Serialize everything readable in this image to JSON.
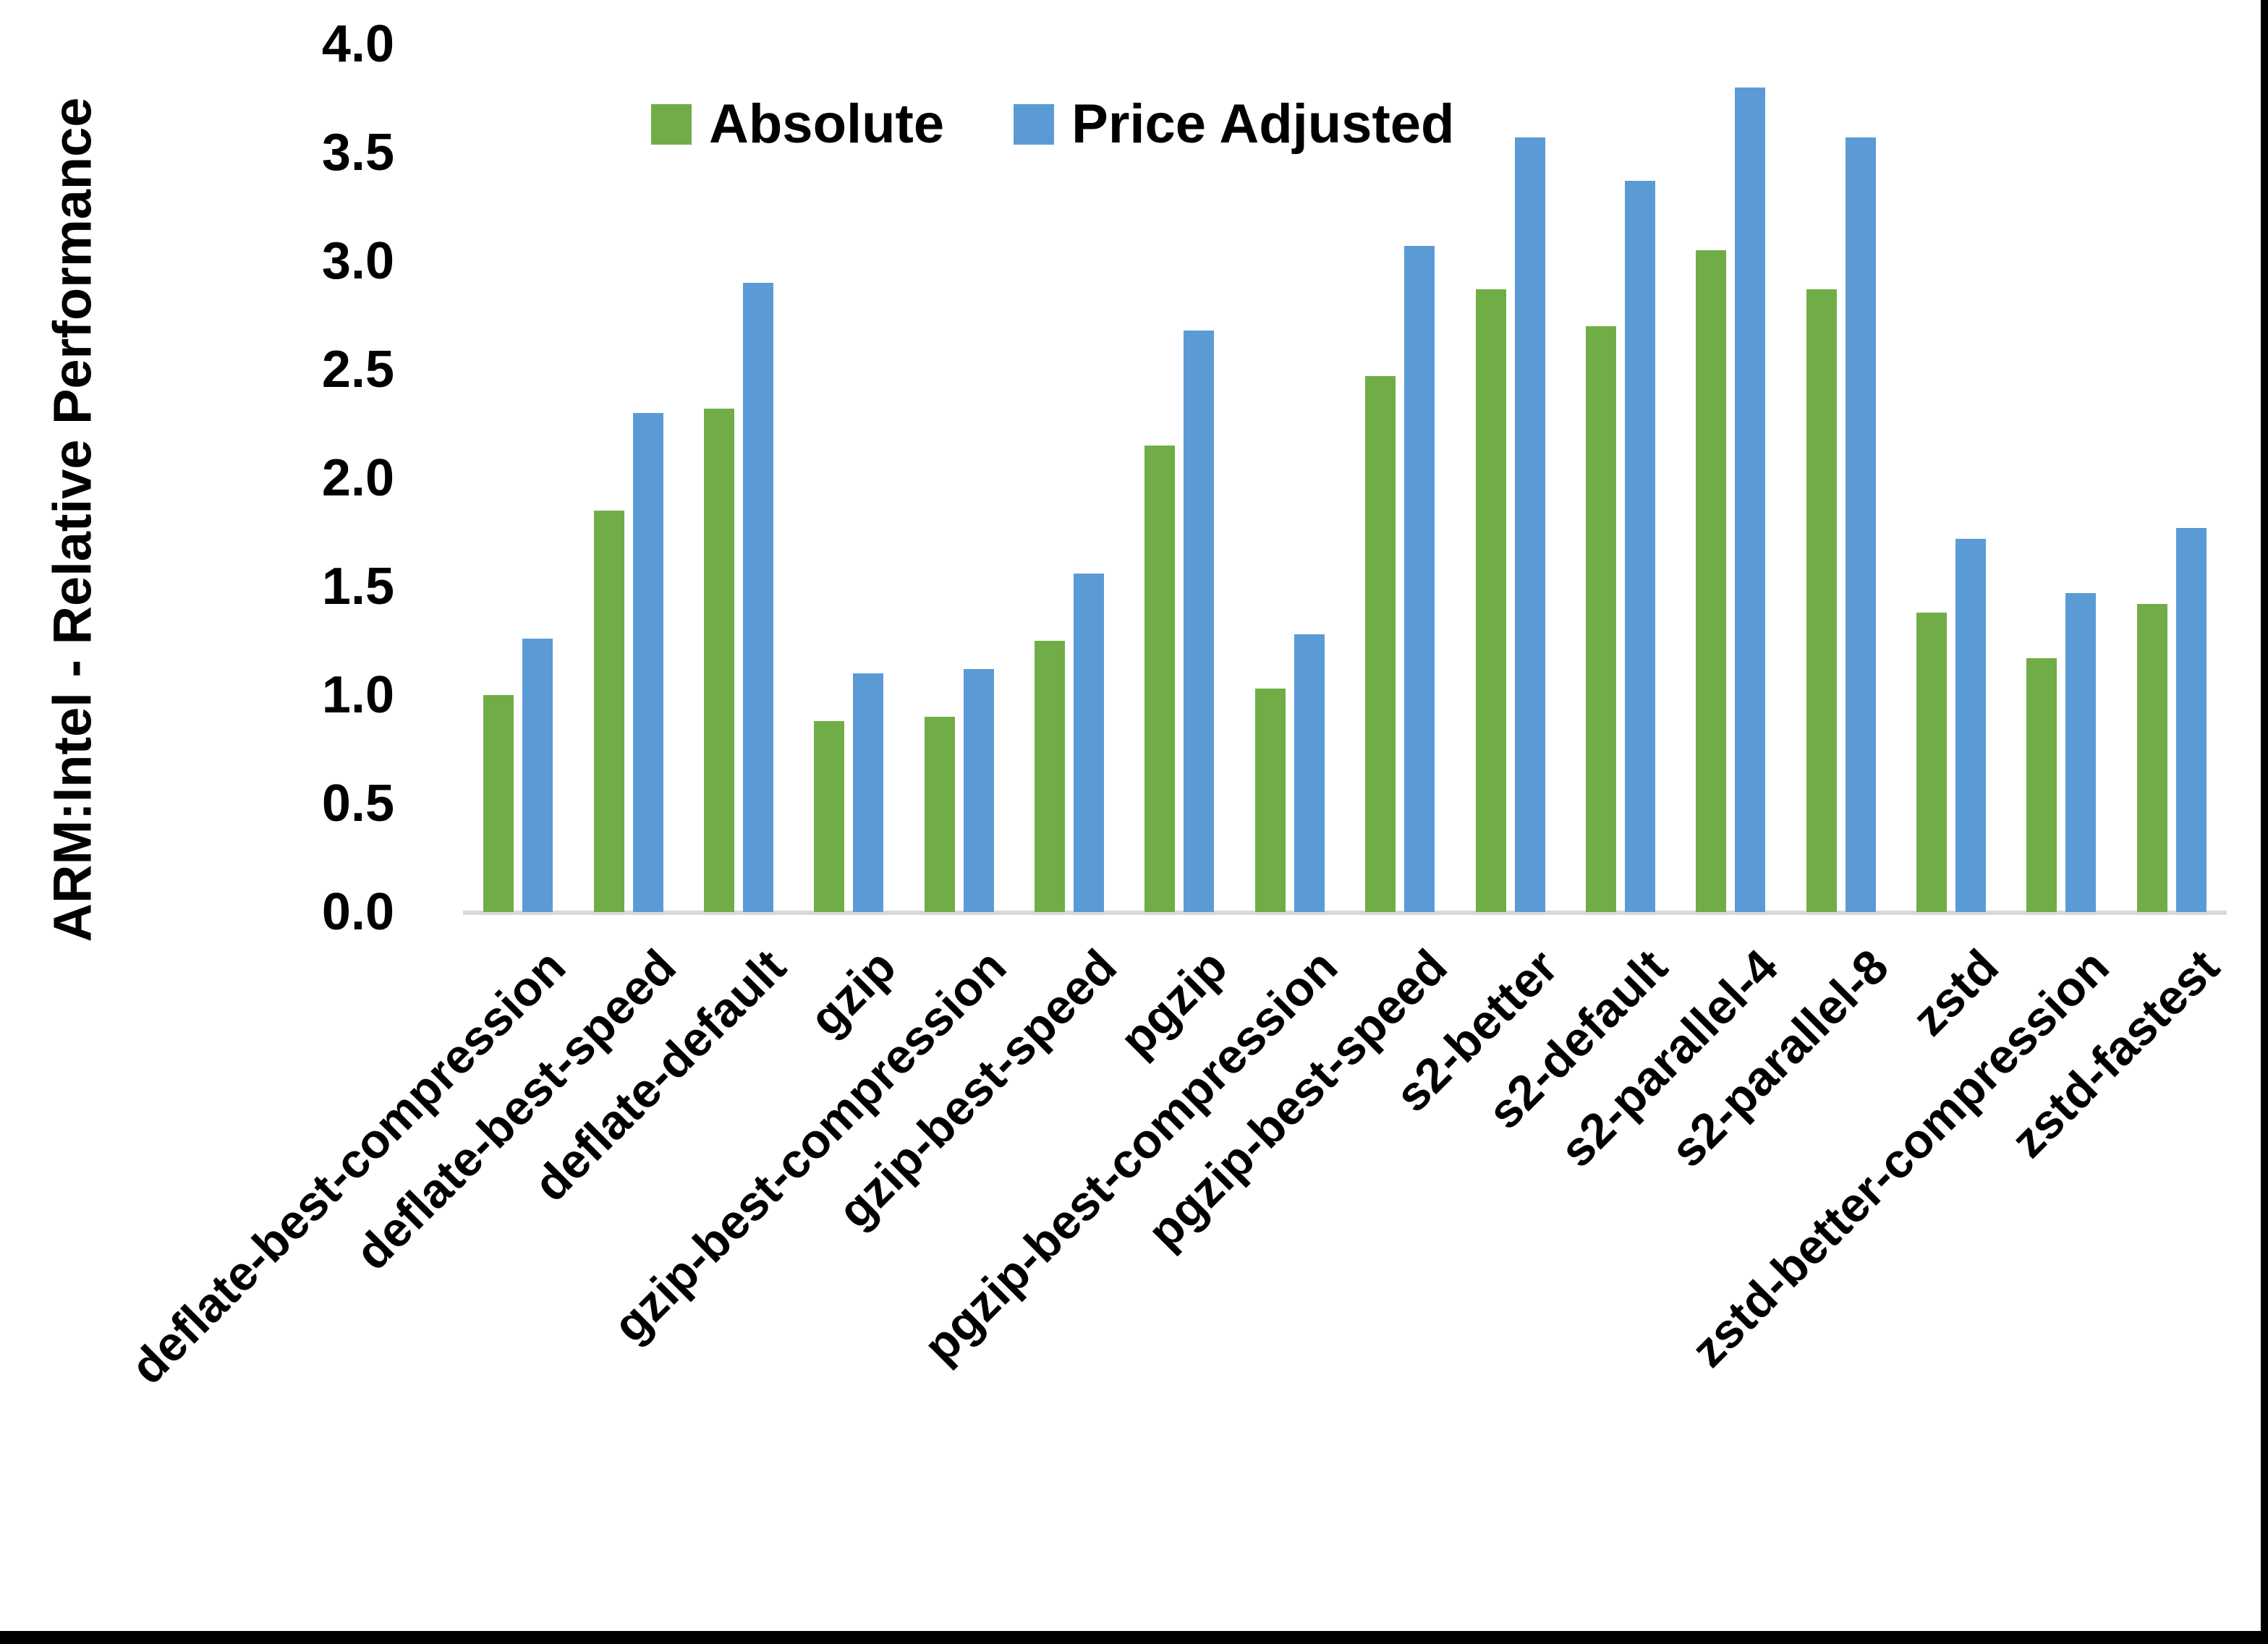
{
  "chart_data": {
    "type": "bar",
    "title": "",
    "xlabel": "",
    "ylabel": "ARM:Intel - Relative Performance",
    "ylim": [
      0.0,
      4.0
    ],
    "ytick_step": 0.5,
    "yticks": [
      "0.0",
      "0.5",
      "1.0",
      "1.5",
      "2.0",
      "2.5",
      "3.0",
      "3.5",
      "4.0"
    ],
    "grid": "off",
    "legend_position": "top-center",
    "categories": [
      "deflate-best-compression",
      "deflate-best-speed",
      "deflate-default",
      "gzip",
      "gzip-best-compression",
      "gzip-best-speed",
      "pgzip",
      "pgzip-best-compression",
      "pgzip-best-speed",
      "s2-better",
      "s2-default",
      "s2-parallel-4",
      "s2-parallel-8",
      "zstd",
      "zstd-better-compression",
      "zstd-fastest"
    ],
    "series": [
      {
        "name": "Absolute",
        "color": "#70AD47",
        "values": [
          1.0,
          1.85,
          2.32,
          0.88,
          0.9,
          1.25,
          2.15,
          1.03,
          2.47,
          2.87,
          2.7,
          3.05,
          2.87,
          1.38,
          1.17,
          1.42
        ]
      },
      {
        "name": "Price Adjusted",
        "color": "#5B9BD5",
        "values": [
          1.26,
          2.3,
          2.9,
          1.1,
          1.12,
          1.56,
          2.68,
          1.28,
          3.07,
          3.57,
          3.37,
          3.8,
          3.57,
          1.72,
          1.47,
          1.77
        ]
      }
    ],
    "axis_line_color": "#D9D9D9",
    "frame_color": "#000000"
  }
}
